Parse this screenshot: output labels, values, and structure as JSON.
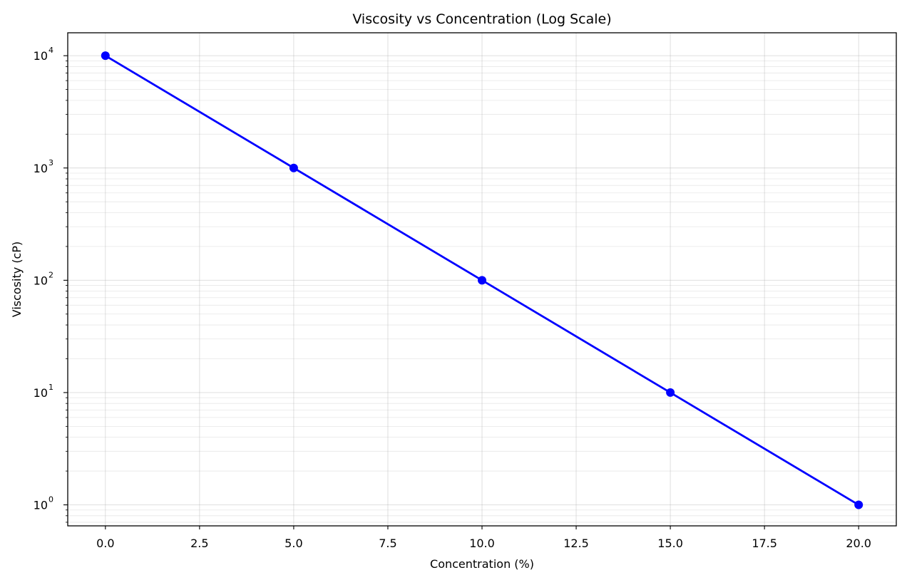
{
  "chart_data": {
    "type": "line",
    "title": "Viscosity vs Concentration (Log Scale)",
    "xlabel": "Concentration (%)",
    "ylabel": "Viscosity (cP)",
    "xlim": [
      -1,
      21
    ],
    "ylim": [
      0.65,
      16000
    ],
    "yscale": "log",
    "grid": true,
    "x_ticks": [
      0,
      2.5,
      5,
      7.5,
      10,
      12.5,
      15,
      17.5,
      20
    ],
    "x_tick_labels": [
      "0.0",
      "2.5",
      "5.0",
      "7.5",
      "10.0",
      "12.5",
      "15.0",
      "17.5",
      "20.0"
    ],
    "y_ticks": [
      1,
      10,
      100,
      1000,
      10000
    ],
    "y_tick_labels": [
      {
        "base": "10",
        "exp": "0"
      },
      {
        "base": "10",
        "exp": "1"
      },
      {
        "base": "10",
        "exp": "2"
      },
      {
        "base": "10",
        "exp": "3"
      },
      {
        "base": "10",
        "exp": "4"
      }
    ],
    "series": [
      {
        "x": [
          0,
          5,
          10,
          15,
          20
        ],
        "y": [
          10000,
          1000,
          100,
          10,
          1
        ],
        "color": "#0000ff",
        "marker": "circle"
      }
    ]
  }
}
